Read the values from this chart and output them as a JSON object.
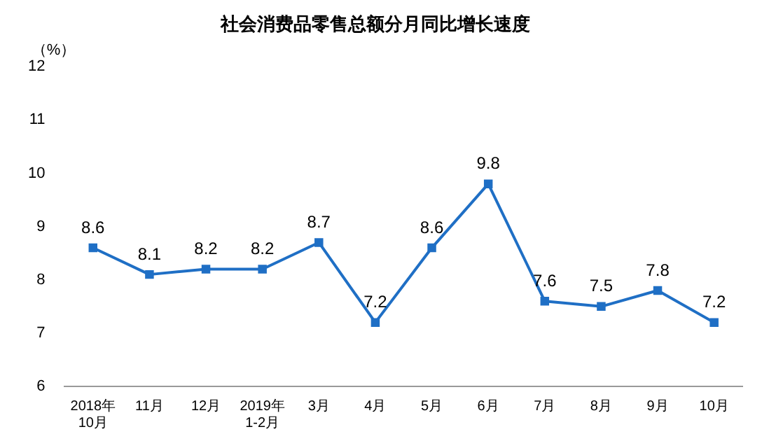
{
  "chart_data": {
    "type": "line",
    "title": "社会消费品零售总额分月同比增长速度",
    "ylabel": "（%）",
    "categories": [
      "2018年\n10月",
      "11月",
      "12月",
      "2019年\n1-2月",
      "3月",
      "4月",
      "5月",
      "6月",
      "7月",
      "8月",
      "9月",
      "10月"
    ],
    "series": [
      {
        "color": "#1f6fc5",
        "values": [
          8.6,
          8.1,
          8.2,
          8.2,
          8.7,
          7.2,
          8.6,
          9.8,
          7.6,
          7.5,
          7.8,
          7.2
        ]
      }
    ],
    "ylim": [
      6,
      12
    ],
    "yticks": [
      6,
      7,
      8,
      9,
      10,
      11,
      12
    ],
    "grid": false,
    "legend": false,
    "marker": "square",
    "line_style": "solid",
    "data_labels": true
  }
}
